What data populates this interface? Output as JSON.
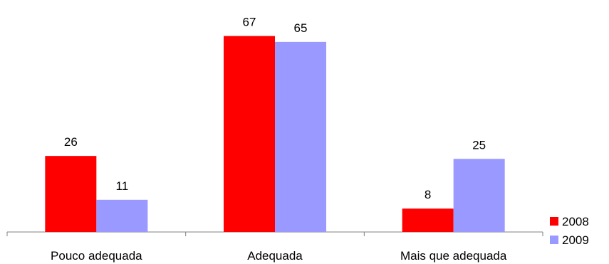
{
  "chart_data": {
    "type": "bar",
    "categories": [
      "Pouco adequada",
      "Adequada",
      "Mais que adequada"
    ],
    "series": [
      {
        "name": "2008",
        "values": [
          26,
          67,
          8
        ],
        "color": "#ff0000"
      },
      {
        "name": "2009",
        "values": [
          11,
          65,
          25
        ],
        "color": "#9999ff"
      }
    ],
    "title": "",
    "xlabel": "",
    "ylabel": "",
    "ylim": [
      0,
      70
    ],
    "grid": false,
    "legend": "bottom-right",
    "data_labels": true
  }
}
